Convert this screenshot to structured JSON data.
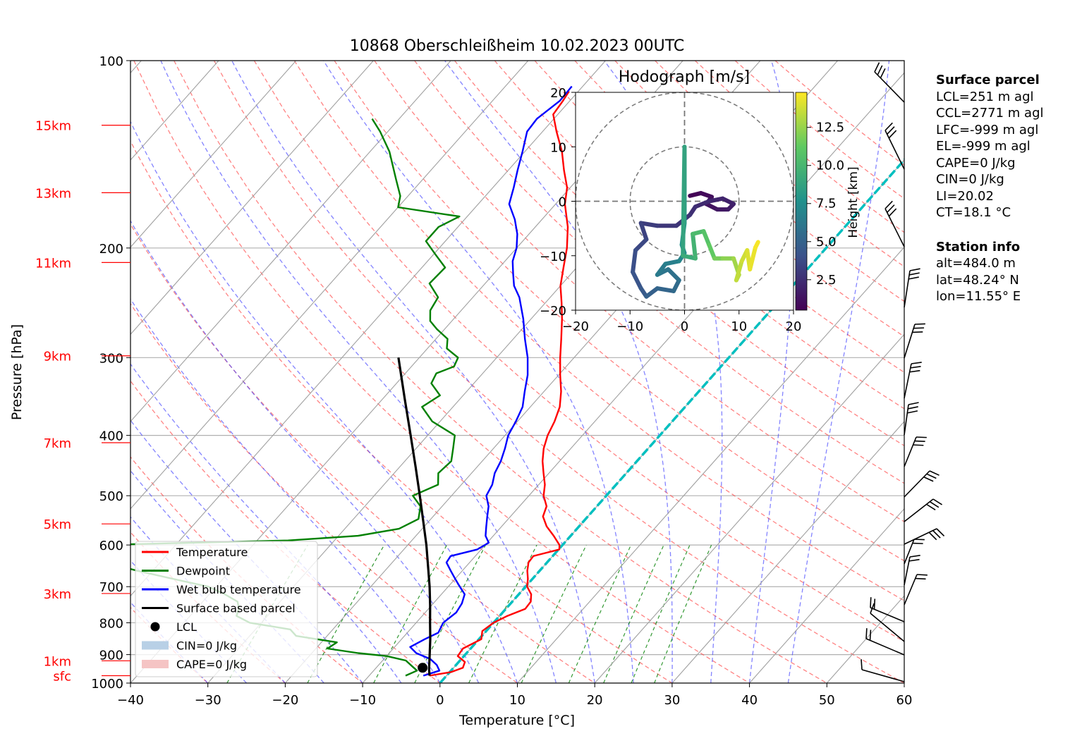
{
  "chart_data": {
    "type": "skew-t log-p",
    "title": "10868 Oberschleißheim 10.02.2023 00UTC",
    "xlabel": "Temperature [°C]",
    "ylabel": "Pressure [hPa]",
    "xlim": [
      -40,
      60
    ],
    "ylim": [
      1000,
      100
    ],
    "x_ticks": [
      -40,
      -30,
      -20,
      -10,
      0,
      10,
      20,
      30,
      40,
      50,
      60
    ],
    "x_tick_labels": [
      "−40",
      "−30",
      "−20",
      "−10",
      "0",
      "10",
      "20",
      "30",
      "40",
      "50",
      "60"
    ],
    "pressure_ticks": [
      100,
      200,
      300,
      400,
      500,
      600,
      700,
      800,
      900,
      1000
    ],
    "pressure_tick_labels": [
      "100",
      "200",
      "300",
      "400",
      "500",
      "600",
      "700",
      "800",
      "900",
      "1000"
    ],
    "height_markers": [
      {
        "label": "15km",
        "pressure": 127
      },
      {
        "label": "13km",
        "pressure": 163
      },
      {
        "label": "11km",
        "pressure": 211
      },
      {
        "label": "9km",
        "pressure": 298
      },
      {
        "label": "7km",
        "pressure": 411
      },
      {
        "label": "5km",
        "pressure": 555
      },
      {
        "label": "3km",
        "pressure": 718
      },
      {
        "label": "1km",
        "pressure": 921
      },
      {
        "label": "sfc",
        "pressure": 973
      }
    ],
    "grid": true,
    "legend_position": "lower-left",
    "legend": [
      {
        "label": "Temperature",
        "color": "#ff0000",
        "kind": "line"
      },
      {
        "label": "Dewpoint",
        "color": "#008000",
        "kind": "line"
      },
      {
        "label": "Wet bulb temperature",
        "color": "#0000ff",
        "kind": "line"
      },
      {
        "label": "Surface based parcel",
        "color": "#000000",
        "kind": "line"
      },
      {
        "label": "LCL",
        "color": "#000000",
        "kind": "marker"
      },
      {
        "label": "CIN=0 J/kg",
        "color": "#b8d0e6",
        "kind": "patch"
      },
      {
        "label": "CAPE=0 J/kg",
        "color": "#f5c4c4",
        "kind": "patch"
      }
    ],
    "series": [
      {
        "name": "Temperature",
        "color": "#ff0000",
        "points": [
          [
            973,
            -2.2
          ],
          [
            960,
            0.2
          ],
          [
            945,
            1.2
          ],
          [
            925,
            0.8
          ],
          [
            905,
            -0.8
          ],
          [
            880,
            -1.0
          ],
          [
            850,
            0.3
          ],
          [
            825,
            -0.5
          ],
          [
            800,
            0.0
          ],
          [
            780,
            1.0
          ],
          [
            760,
            2.5
          ],
          [
            740,
            2.4
          ],
          [
            720,
            1.6
          ],
          [
            700,
            0.2
          ],
          [
            680,
            -0.6
          ],
          [
            660,
            -1.6
          ],
          [
            640,
            -2.4
          ],
          [
            625,
            -2.5
          ],
          [
            610,
            0.1
          ],
          [
            600,
            -0.4
          ],
          [
            580,
            -2.2
          ],
          [
            560,
            -4.2
          ],
          [
            540,
            -5.8
          ],
          [
            520,
            -6.5
          ],
          [
            500,
            -8.1
          ],
          [
            480,
            -9.2
          ],
          [
            460,
            -10.7
          ],
          [
            440,
            -12.2
          ],
          [
            420,
            -13.5
          ],
          [
            400,
            -14.5
          ],
          [
            380,
            -15.2
          ],
          [
            360,
            -16.2
          ],
          [
            340,
            -17.8
          ],
          [
            320,
            -19.8
          ],
          [
            300,
            -21.8
          ],
          [
            280,
            -23.8
          ],
          [
            260,
            -26.0
          ],
          [
            245,
            -27.9
          ],
          [
            230,
            -30.0
          ],
          [
            215,
            -31.7
          ],
          [
            200,
            -33.5
          ],
          [
            185,
            -35.8
          ],
          [
            170,
            -38.8
          ],
          [
            160,
            -40.4
          ],
          [
            150,
            -42.8
          ],
          [
            140,
            -45.2
          ],
          [
            130,
            -48.2
          ],
          [
            122,
            -50.6
          ],
          [
            116,
            -50.9
          ],
          [
            112,
            -51.2
          ]
        ]
      },
      {
        "name": "Dewpoint",
        "color": "#008000",
        "points": [
          [
            973,
            -5.3
          ],
          [
            955,
            -4.4
          ],
          [
            940,
            -5.5
          ],
          [
            920,
            -7.0
          ],
          [
            905,
            -10.0
          ],
          [
            895,
            -14.0
          ],
          [
            880,
            -18.5
          ],
          [
            860,
            -18.0
          ],
          [
            840,
            -24.0
          ],
          [
            820,
            -25.5
          ],
          [
            800,
            -31.5
          ],
          [
            780,
            -34.0
          ],
          [
            760,
            -34.5
          ],
          [
            740,
            -35.5
          ],
          [
            720,
            -38.0
          ],
          [
            700,
            -41.0
          ],
          [
            680,
            -46.5
          ],
          [
            660,
            -52.0
          ],
          [
            640,
            -57.0
          ],
          [
            625,
            -64.0
          ],
          [
            610,
            -69.0
          ],
          [
            600,
            -60.0
          ],
          [
            590,
            -36.0
          ],
          [
            580,
            -27.5
          ],
          [
            565,
            -23.0
          ],
          [
            545,
            -21.6
          ],
          [
            520,
            -22.8
          ],
          [
            500,
            -25.0
          ],
          [
            480,
            -23.0
          ],
          [
            460,
            -24.3
          ],
          [
            440,
            -24.0
          ],
          [
            420,
            -25.2
          ],
          [
            400,
            -26.5
          ],
          [
            380,
            -31.0
          ],
          [
            360,
            -34.0
          ],
          [
            345,
            -33.0
          ],
          [
            330,
            -35.5
          ],
          [
            318,
            -36.0
          ],
          [
            310,
            -34.5
          ],
          [
            300,
            -35.0
          ],
          [
            290,
            -37.5
          ],
          [
            280,
            -38.5
          ],
          [
            270,
            -41.0
          ],
          [
            262,
            -42.8
          ],
          [
            252,
            -44.0
          ],
          [
            240,
            -44.5
          ],
          [
            228,
            -47.2
          ],
          [
            215,
            -47.0
          ],
          [
            205,
            -49.7
          ],
          [
            195,
            -52.5
          ],
          [
            185,
            -52.5
          ],
          [
            178,
            -51.0
          ],
          [
            172,
            -60.0
          ],
          [
            165,
            -61.0
          ],
          [
            155,
            -63.5
          ],
          [
            140,
            -67.5
          ],
          [
            130,
            -71.0
          ],
          [
            124,
            -73.5
          ]
        ]
      },
      {
        "name": "Wet bulb temperature",
        "color": "#0000ff",
        "points": [
          [
            973,
            -3.0
          ],
          [
            955,
            -1.5
          ],
          [
            935,
            -2.5
          ],
          [
            915,
            -4.0
          ],
          [
            895,
            -6.5
          ],
          [
            875,
            -8.0
          ],
          [
            850,
            -7.0
          ],
          [
            830,
            -6.0
          ],
          [
            800,
            -6.5
          ],
          [
            770,
            -6.0
          ],
          [
            745,
            -6.3
          ],
          [
            720,
            -7.0
          ],
          [
            700,
            -8.5
          ],
          [
            680,
            -10.0
          ],
          [
            660,
            -11.5
          ],
          [
            640,
            -13.0
          ],
          [
            625,
            -13.2
          ],
          [
            610,
            -10.5
          ],
          [
            595,
            -9.8
          ],
          [
            580,
            -11.0
          ],
          [
            560,
            -12.0
          ],
          [
            540,
            -13.0
          ],
          [
            520,
            -14.0
          ],
          [
            500,
            -15.5
          ],
          [
            480,
            -16.0
          ],
          [
            460,
            -17.0
          ],
          [
            440,
            -17.6
          ],
          [
            420,
            -18.5
          ],
          [
            400,
            -19.6
          ],
          [
            380,
            -20.2
          ],
          [
            360,
            -21.0
          ],
          [
            340,
            -22.5
          ],
          [
            320,
            -24.0
          ],
          [
            300,
            -26.0
          ],
          [
            280,
            -28.5
          ],
          [
            260,
            -31.0
          ],
          [
            240,
            -34.0
          ],
          [
            230,
            -36.0
          ],
          [
            220,
            -37.5
          ],
          [
            210,
            -39.0
          ],
          [
            200,
            -40.0
          ],
          [
            190,
            -41.5
          ],
          [
            180,
            -43.5
          ],
          [
            170,
            -46.0
          ],
          [
            160,
            -47.3
          ],
          [
            150,
            -48.8
          ],
          [
            140,
            -50.3
          ],
          [
            130,
            -52.0
          ],
          [
            124,
            -52.2
          ],
          [
            116,
            -51.3
          ],
          [
            110,
            -51.4
          ]
        ]
      },
      {
        "name": "Surface based parcel",
        "color": "#000000",
        "points": [
          [
            973,
            -2.2
          ],
          [
            950,
            -3.0
          ],
          [
            900,
            -4.6
          ],
          [
            850,
            -6.3
          ],
          [
            800,
            -8.2
          ],
          [
            750,
            -10.2
          ],
          [
            700,
            -12.4
          ],
          [
            650,
            -14.9
          ],
          [
            600,
            -17.6
          ],
          [
            550,
            -20.7
          ],
          [
            500,
            -24.1
          ],
          [
            450,
            -27.9
          ],
          [
            400,
            -32.2
          ],
          [
            350,
            -37.1
          ],
          [
            300,
            -42.7
          ]
        ]
      }
    ],
    "lcl": {
      "pressure": 945,
      "temperature": -4.0
    },
    "freezing_level_line": {
      "color": "#00bfbf",
      "temperature": 0
    },
    "wind_barbs": {
      "count": 22,
      "color": "#000000"
    },
    "hodograph": {
      "title": "Hodograph [m/s]",
      "xlim": [
        -20,
        20
      ],
      "ylim": [
        -20,
        20
      ],
      "ticks": [
        -20,
        -10,
        0,
        10,
        20
      ],
      "tick_labels": [
        "−20",
        "−10",
        "0",
        "10",
        "20"
      ],
      "rings": [
        10,
        20
      ],
      "colorbar_label": "Height [km]",
      "colorbar_ticks": [
        2.5,
        5.0,
        7.5,
        10.0,
        12.5
      ],
      "colorbar_tick_labels": [
        "2.5",
        "5.0",
        "7.5",
        "10.0",
        "12.5"
      ],
      "colorbar_range": [
        0.5,
        14.8
      ],
      "trace": [
        {
          "u": 1.0,
          "v": 1.0,
          "h": 0.5
        },
        {
          "u": 3.0,
          "v": 1.5,
          "h": 0.8
        },
        {
          "u": 5.0,
          "v": 0.8,
          "h": 1.0
        },
        {
          "u": 4.0,
          "v": -0.5,
          "h": 1.2
        },
        {
          "u": 6.0,
          "v": -1.5,
          "h": 1.4
        },
        {
          "u": 8.0,
          "v": -1.5,
          "h": 1.6
        },
        {
          "u": 9.0,
          "v": -0.5,
          "h": 1.8
        },
        {
          "u": 7.0,
          "v": 0.5,
          "h": 2.0
        },
        {
          "u": 4.5,
          "v": 0.0,
          "h": 2.2
        },
        {
          "u": 2.0,
          "v": -1.0,
          "h": 2.4
        },
        {
          "u": 1.0,
          "v": -2.5,
          "h": 2.6
        },
        {
          "u": -1.5,
          "v": -4.5,
          "h": 2.8
        },
        {
          "u": -5.0,
          "v": -4.5,
          "h": 3.0
        },
        {
          "u": -8.0,
          "v": -4.0,
          "h": 3.2
        },
        {
          "u": -7.0,
          "v": -7.0,
          "h": 3.5
        },
        {
          "u": -9.0,
          "v": -9.0,
          "h": 3.8
        },
        {
          "u": -9.5,
          "v": -13.0,
          "h": 4.1
        },
        {
          "u": -8.0,
          "v": -16.0,
          "h": 4.4
        },
        {
          "u": -7.0,
          "v": -17.5,
          "h": 4.7
        },
        {
          "u": -5.0,
          "v": -16.0,
          "h": 5.0
        },
        {
          "u": -2.0,
          "v": -16.5,
          "h": 5.3
        },
        {
          "u": -1.0,
          "v": -14.5,
          "h": 5.6
        },
        {
          "u": -3.0,
          "v": -12.5,
          "h": 5.9
        },
        {
          "u": -5.0,
          "v": -13.5,
          "h": 6.2
        },
        {
          "u": -3.5,
          "v": -11.5,
          "h": 6.5
        },
        {
          "u": -1.0,
          "v": -11.0,
          "h": 6.8
        },
        {
          "u": 0.0,
          "v": -9.5,
          "h": 7.1
        },
        {
          "u": -0.5,
          "v": -8.0,
          "h": 7.5
        },
        {
          "u": 0.0,
          "v": -4.0,
          "h": 8.0
        },
        {
          "u": 0.0,
          "v": 10.0,
          "h": 8.5
        },
        {
          "u": -0.3,
          "v": -10.0,
          "h": 9.0
        },
        {
          "u": 2.0,
          "v": -10.5,
          "h": 9.5
        },
        {
          "u": 1.5,
          "v": -6.0,
          "h": 10.0
        },
        {
          "u": 3.5,
          "v": -5.5,
          "h": 10.5
        },
        {
          "u": 4.5,
          "v": -8.0,
          "h": 11.0
        },
        {
          "u": 5.5,
          "v": -10.5,
          "h": 11.5
        },
        {
          "u": 7.0,
          "v": -10.5,
          "h": 12.0
        },
        {
          "u": 9.0,
          "v": -10.5,
          "h": 12.5
        },
        {
          "u": 10.0,
          "v": -13.5,
          "h": 13.0
        },
        {
          "u": 9.5,
          "v": -14.5,
          "h": 13.3
        },
        {
          "u": 10.5,
          "v": -11.0,
          "h": 13.6
        },
        {
          "u": 11.5,
          "v": -9.0,
          "h": 13.9
        },
        {
          "u": 12.0,
          "v": -12.5,
          "h": 14.2
        },
        {
          "u": 13.0,
          "v": -8.5,
          "h": 14.5
        },
        {
          "u": 13.5,
          "v": -7.5,
          "h": 14.8
        }
      ]
    }
  },
  "surface_parcel": {
    "title": "Surface parcel",
    "lines": [
      "LCL=251 m agl",
      "CCL=2771 m agl",
      "LFC=-999 m agl",
      "EL=-999 m agl",
      "CAPE=0 J/kg",
      "CIN=0 J/kg",
      "LI=20.02",
      "CT=18.1 °C"
    ]
  },
  "station_info": {
    "title": "Station info",
    "lines": [
      "alt=484.0 m",
      "lat=48.24° N",
      "lon=11.55° E"
    ]
  }
}
